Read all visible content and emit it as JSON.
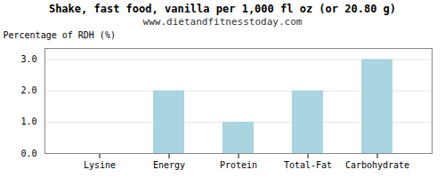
{
  "chart_data": {
    "type": "bar",
    "title": "Shake, fast food, vanilla per 1,000 fl oz (or 20.80 g)",
    "subtitle": "www.dietandfitnesstoday.com",
    "categories": [
      "Lysine",
      "Energy",
      "Protein",
      "Total-Fat",
      "Carbohydrate"
    ],
    "values": [
      0.0,
      2.0,
      1.0,
      2.0,
      3.0
    ],
    "color": "#aad4e0",
    "ylabel": "Percentage of RDH (%)",
    "ylim": [
      0,
      3.35
    ],
    "yticks": [
      {
        "value": 0,
        "label": "0.0"
      },
      {
        "value": 1,
        "label": "1.0"
      },
      {
        "value": 2,
        "label": "2.0"
      },
      {
        "value": 3,
        "label": "3.0"
      }
    ],
    "grid": true
  }
}
